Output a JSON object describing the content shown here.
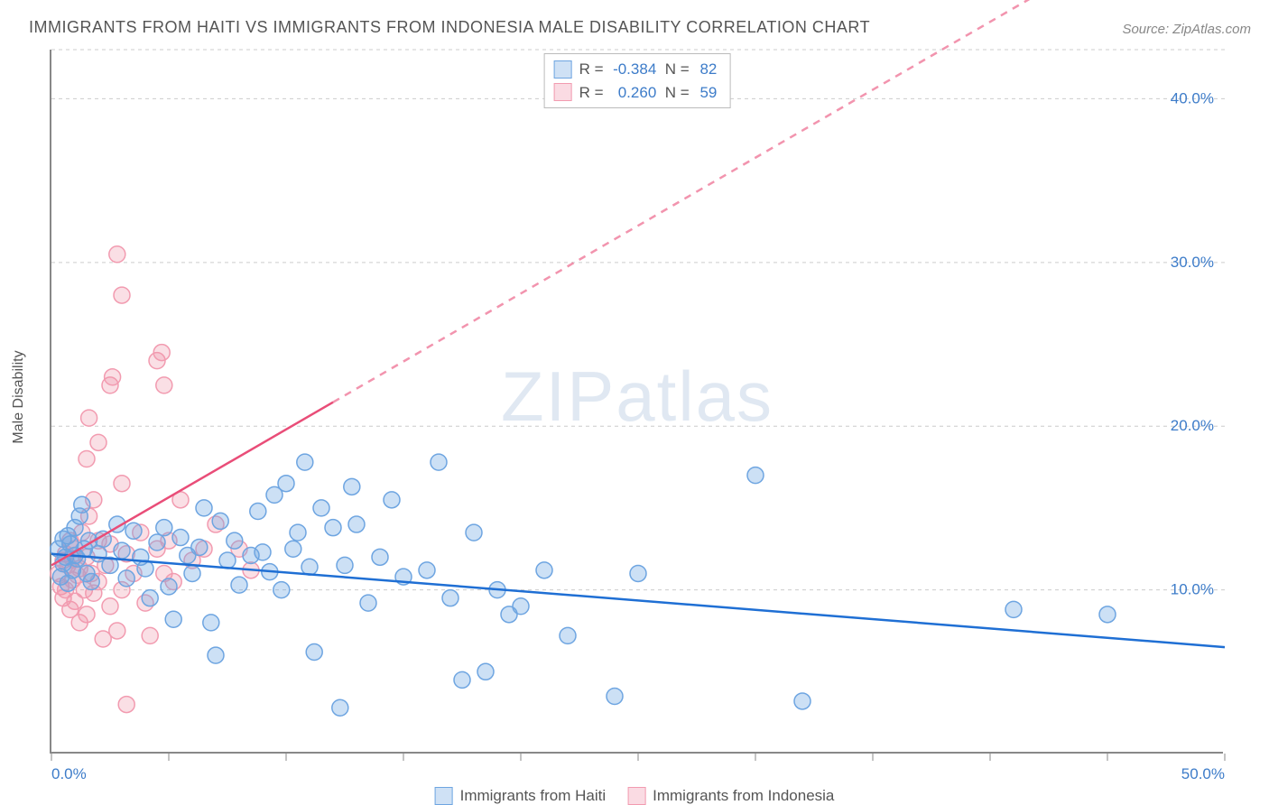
{
  "title": "IMMIGRANTS FROM HAITI VS IMMIGRANTS FROM INDONESIA MALE DISABILITY CORRELATION CHART",
  "source": "Source: ZipAtlas.com",
  "watermark": "ZIPatlas",
  "y_axis_label": "Male Disability",
  "chart": {
    "type": "scatter",
    "xlim": [
      0,
      50
    ],
    "ylim": [
      0,
      43
    ],
    "x_ticks": [
      0,
      5,
      10,
      15,
      20,
      25,
      30,
      35,
      40,
      45,
      50
    ],
    "x_tick_labels": {
      "0": "0.0%",
      "50": "50.0%"
    },
    "y_grid": [
      10,
      20,
      30,
      40,
      43
    ],
    "y_tick_labels": {
      "10": "10.0%",
      "20": "20.0%",
      "30": "30.0%",
      "40": "40.0%"
    },
    "background": "#ffffff",
    "grid_color": "#cccccc",
    "axis_color": "#888888"
  },
  "series": [
    {
      "id": "haiti",
      "label": "Immigrants from Haiti",
      "color_fill": "rgba(110,165,225,0.35)",
      "color_stroke": "#6ea5e1",
      "swatch_fill": "#cfe1f5",
      "swatch_stroke": "#6ea5e1",
      "marker_radius": 9,
      "R": "-0.384",
      "N": "82",
      "trend": {
        "x1": 0,
        "y1": 12.2,
        "x2": 50,
        "y2": 6.5,
        "solid_until_x": 50,
        "color": "#1f6fd4",
        "width": 2.5
      },
      "points": [
        [
          0.3,
          12.5
        ],
        [
          0.4,
          10.8
        ],
        [
          0.5,
          13.1
        ],
        [
          0.5,
          11.6
        ],
        [
          0.6,
          12.0
        ],
        [
          0.7,
          13.3
        ],
        [
          0.7,
          10.4
        ],
        [
          0.8,
          12.8
        ],
        [
          0.9,
          11.2
        ],
        [
          1.0,
          12.1
        ],
        [
          1.0,
          13.8
        ],
        [
          1.1,
          11.9
        ],
        [
          1.2,
          14.5
        ],
        [
          1.3,
          15.2
        ],
        [
          1.4,
          12.5
        ],
        [
          1.5,
          11.0
        ],
        [
          1.6,
          13.0
        ],
        [
          1.7,
          10.5
        ],
        [
          2.0,
          12.2
        ],
        [
          2.2,
          13.1
        ],
        [
          2.5,
          11.5
        ],
        [
          2.8,
          14.0
        ],
        [
          3.0,
          12.4
        ],
        [
          3.2,
          10.7
        ],
        [
          3.5,
          13.6
        ],
        [
          3.8,
          12.0
        ],
        [
          4.0,
          11.3
        ],
        [
          4.2,
          9.5
        ],
        [
          4.5,
          12.9
        ],
        [
          4.8,
          13.8
        ],
        [
          5.0,
          10.2
        ],
        [
          5.2,
          8.2
        ],
        [
          5.5,
          13.2
        ],
        [
          5.8,
          12.1
        ],
        [
          6.0,
          11.0
        ],
        [
          6.3,
          12.6
        ],
        [
          6.5,
          15.0
        ],
        [
          6.8,
          8.0
        ],
        [
          7.0,
          6.0
        ],
        [
          7.2,
          14.2
        ],
        [
          7.5,
          11.8
        ],
        [
          7.8,
          13.0
        ],
        [
          8.0,
          10.3
        ],
        [
          8.5,
          12.1
        ],
        [
          8.8,
          14.8
        ],
        [
          9.0,
          12.3
        ],
        [
          9.3,
          11.1
        ],
        [
          9.5,
          15.8
        ],
        [
          9.8,
          10.0
        ],
        [
          10.0,
          16.5
        ],
        [
          10.3,
          12.5
        ],
        [
          10.5,
          13.5
        ],
        [
          10.8,
          17.8
        ],
        [
          11.0,
          11.4
        ],
        [
          11.2,
          6.2
        ],
        [
          11.5,
          15.0
        ],
        [
          12.0,
          13.8
        ],
        [
          12.3,
          2.8
        ],
        [
          12.5,
          11.5
        ],
        [
          12.8,
          16.3
        ],
        [
          13.0,
          14.0
        ],
        [
          13.5,
          9.2
        ],
        [
          14.0,
          12.0
        ],
        [
          14.5,
          15.5
        ],
        [
          15.0,
          10.8
        ],
        [
          16.0,
          11.2
        ],
        [
          16.5,
          17.8
        ],
        [
          17.0,
          9.5
        ],
        [
          17.5,
          4.5
        ],
        [
          18.0,
          13.5
        ],
        [
          19.0,
          10.0
        ],
        [
          19.5,
          8.5
        ],
        [
          20.0,
          9.0
        ],
        [
          21.0,
          11.2
        ],
        [
          22.0,
          7.2
        ],
        [
          24.0,
          3.5
        ],
        [
          25.0,
          11.0
        ],
        [
          30.0,
          17.0
        ],
        [
          32.0,
          3.2
        ],
        [
          41.0,
          8.8
        ],
        [
          45.0,
          8.5
        ],
        [
          18.5,
          5.0
        ]
      ]
    },
    {
      "id": "indonesia",
      "label": "Immigrants from Indonesia",
      "color_fill": "rgba(240,150,170,0.3)",
      "color_stroke": "#f29bb0",
      "swatch_fill": "#fadbe3",
      "swatch_stroke": "#f29bb0",
      "marker_radius": 9,
      "R": "0.260",
      "N": "59",
      "trend": {
        "x1": 0,
        "y1": 11.5,
        "x2": 50,
        "y2": 53,
        "solid_until_x": 12,
        "color": "#e94d78",
        "width": 2.5
      },
      "points": [
        [
          0.3,
          11.0
        ],
        [
          0.4,
          10.2
        ],
        [
          0.5,
          11.8
        ],
        [
          0.5,
          9.5
        ],
        [
          0.6,
          12.2
        ],
        [
          0.6,
          10.0
        ],
        [
          0.7,
          11.5
        ],
        [
          0.8,
          8.8
        ],
        [
          0.8,
          13.0
        ],
        [
          0.9,
          10.6
        ],
        [
          0.9,
          11.9
        ],
        [
          1.0,
          9.3
        ],
        [
          1.0,
          12.5
        ],
        [
          1.1,
          10.9
        ],
        [
          1.2,
          8.0
        ],
        [
          1.2,
          11.3
        ],
        [
          1.3,
          13.5
        ],
        [
          1.4,
          10.0
        ],
        [
          1.5,
          12.0
        ],
        [
          1.5,
          8.5
        ],
        [
          1.6,
          14.5
        ],
        [
          1.7,
          11.0
        ],
        [
          1.8,
          9.8
        ],
        [
          1.8,
          15.5
        ],
        [
          2.0,
          10.5
        ],
        [
          2.0,
          13.0
        ],
        [
          2.2,
          7.0
        ],
        [
          2.3,
          11.5
        ],
        [
          2.5,
          12.8
        ],
        [
          2.5,
          9.0
        ],
        [
          2.8,
          7.5
        ],
        [
          3.0,
          10.0
        ],
        [
          3.0,
          16.5
        ],
        [
          3.2,
          12.2
        ],
        [
          3.5,
          11.0
        ],
        [
          3.8,
          13.5
        ],
        [
          4.0,
          9.2
        ],
        [
          4.2,
          7.2
        ],
        [
          4.5,
          12.5
        ],
        [
          4.8,
          11.0
        ],
        [
          5.0,
          13.0
        ],
        [
          5.2,
          10.5
        ],
        [
          5.5,
          15.5
        ],
        [
          6.0,
          11.8
        ],
        [
          6.5,
          12.5
        ],
        [
          7.0,
          14.0
        ],
        [
          8.0,
          12.5
        ],
        [
          8.5,
          11.2
        ],
        [
          1.5,
          18.0
        ],
        [
          1.6,
          20.5
        ],
        [
          2.0,
          19.0
        ],
        [
          2.5,
          22.5
        ],
        [
          2.6,
          23.0
        ],
        [
          3.0,
          28.0
        ],
        [
          2.8,
          30.5
        ],
        [
          4.5,
          24.0
        ],
        [
          4.7,
          24.5
        ],
        [
          4.8,
          22.5
        ],
        [
          3.2,
          3.0
        ]
      ]
    }
  ],
  "x_legend": [
    {
      "label": "Immigrants from Haiti",
      "fill": "#cfe1f5",
      "stroke": "#6ea5e1"
    },
    {
      "label": "Immigrants from Indonesia",
      "fill": "#fadbe3",
      "stroke": "#f29bb0"
    }
  ]
}
